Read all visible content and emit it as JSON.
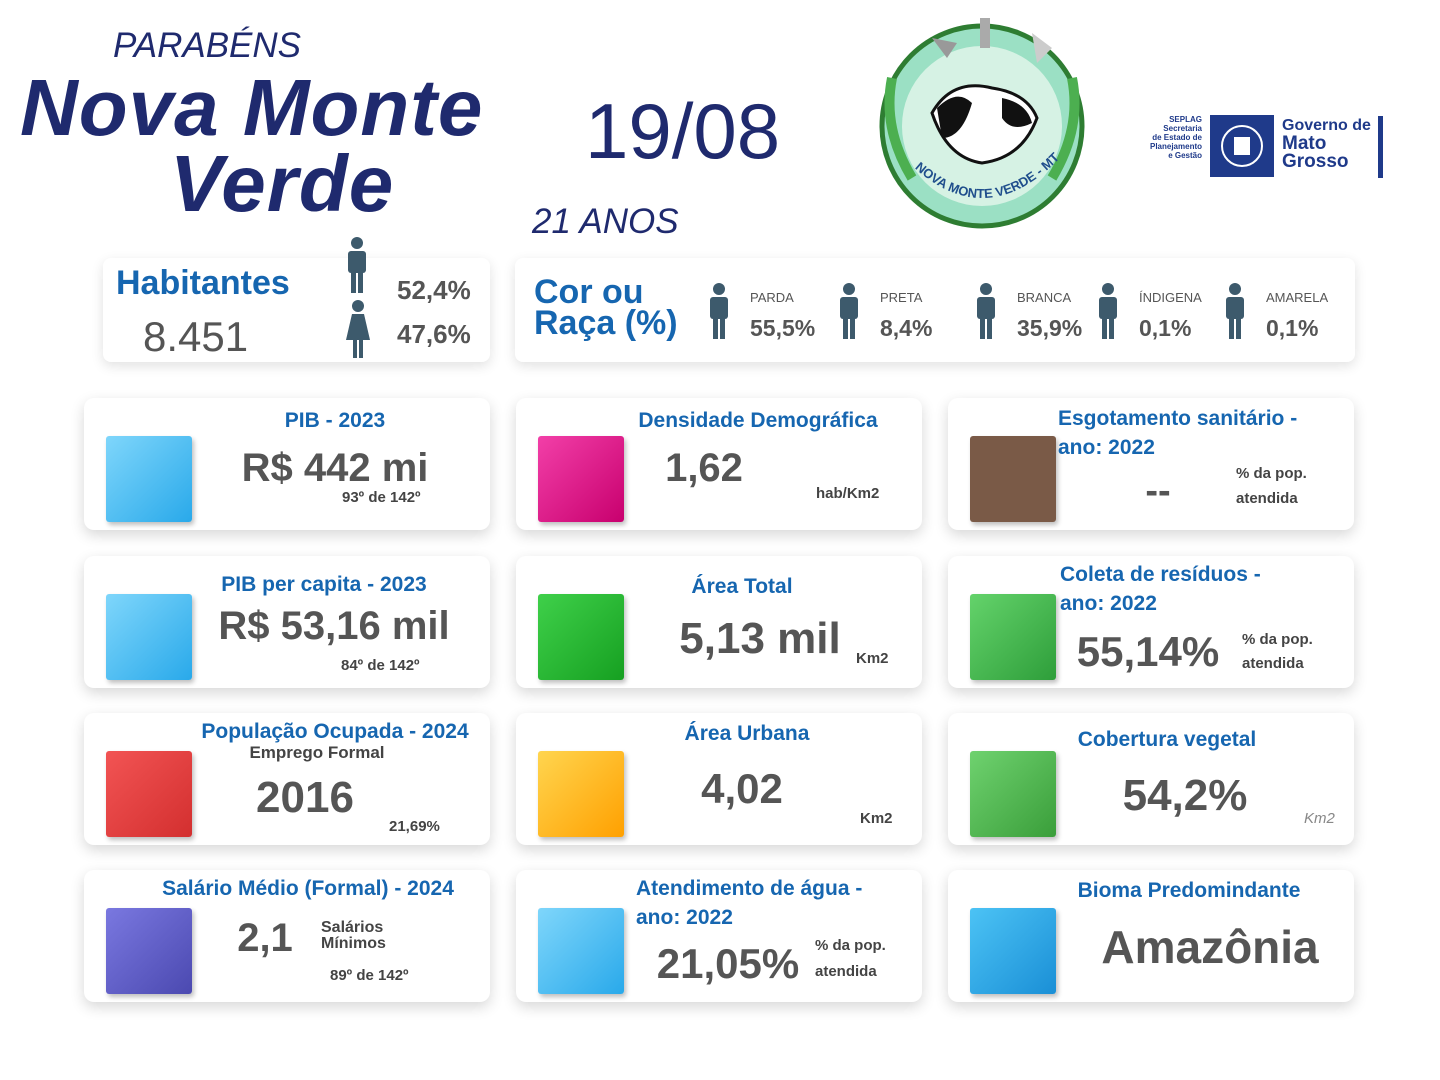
{
  "header": {
    "greeting": "PARABÉNS",
    "city_line1": "Nova Monte",
    "city_line2": "Verde",
    "date": "19/08",
    "anniversary": "21 ANOS",
    "seal_text": "NOVA MONTE VERDE - MT"
  },
  "government_logo": {
    "seplag_lines": [
      "SEPLAG",
      "Secretaria",
      "de Estado de",
      "Planejamento",
      "e Gestão"
    ],
    "name_lines": [
      "Governo de",
      "Mato",
      "Grosso"
    ]
  },
  "population": {
    "label": "Habitantes",
    "value": "8.451",
    "male": "52,4%",
    "female": "47,6%"
  },
  "race": {
    "label_lines": [
      "Cor ou",
      "Raça (%)"
    ],
    "groups": [
      {
        "name": "PARDA",
        "value": "55,5%"
      },
      {
        "name": "PRETA",
        "value": "8,4%"
      },
      {
        "name": "BRANCA",
        "value": "35,9%"
      },
      {
        "name": "ÍNDIGENA",
        "value": "0,1%"
      },
      {
        "name": "AMARELA",
        "value": "0,1%"
      }
    ]
  },
  "cards": [
    {
      "title": [
        "PIB - 2023"
      ],
      "value": "R$ 442 mi",
      "notes": [
        "93º de 142º"
      ]
    },
    {
      "title": [
        "Densidade Demográfica"
      ],
      "value": "1,62",
      "notes": [
        "hab/Km2"
      ]
    },
    {
      "title": [
        "Esgotamento sanitário -",
        "ano: 2022"
      ],
      "value": "--",
      "notes": [
        "% da pop.",
        "atendida"
      ]
    },
    {
      "title": [
        "PIB per capita - 2023"
      ],
      "value": "R$ 53,16 mil",
      "notes": [
        "84º de 142º"
      ]
    },
    {
      "title": [
        "Área Total"
      ],
      "value": "5,13 mil",
      "notes": [
        "Km2"
      ]
    },
    {
      "title": [
        "Coleta de resíduos -",
        "ano: 2022"
      ],
      "value": "55,14%",
      "notes": [
        "% da pop.",
        "atendida"
      ]
    },
    {
      "title": [
        "População Ocupada - 2024"
      ],
      "subtitle": "Emprego Formal",
      "value": "2016",
      "notes": [
        "21,69%"
      ]
    },
    {
      "title": [
        "Área Urbana"
      ],
      "value": "4,02",
      "notes": [
        "Km2"
      ]
    },
    {
      "title": [
        "Cobertura vegetal"
      ],
      "value": "54,2%",
      "notes": [
        "Km2"
      ]
    },
    {
      "title": [
        "Salário Médio (Formal) - 2024"
      ],
      "value": "2,1",
      "notes": [
        "Salários",
        "Mínimos",
        "89º de 142º"
      ]
    },
    {
      "title": [
        "Atendimento de água -",
        "ano: 2022"
      ],
      "value": "21,05%",
      "notes": [
        "% da pop.",
        "atendida"
      ]
    },
    {
      "title": [
        "Bioma Predomindante"
      ],
      "value": "Amazônia",
      "notes": []
    }
  ]
}
